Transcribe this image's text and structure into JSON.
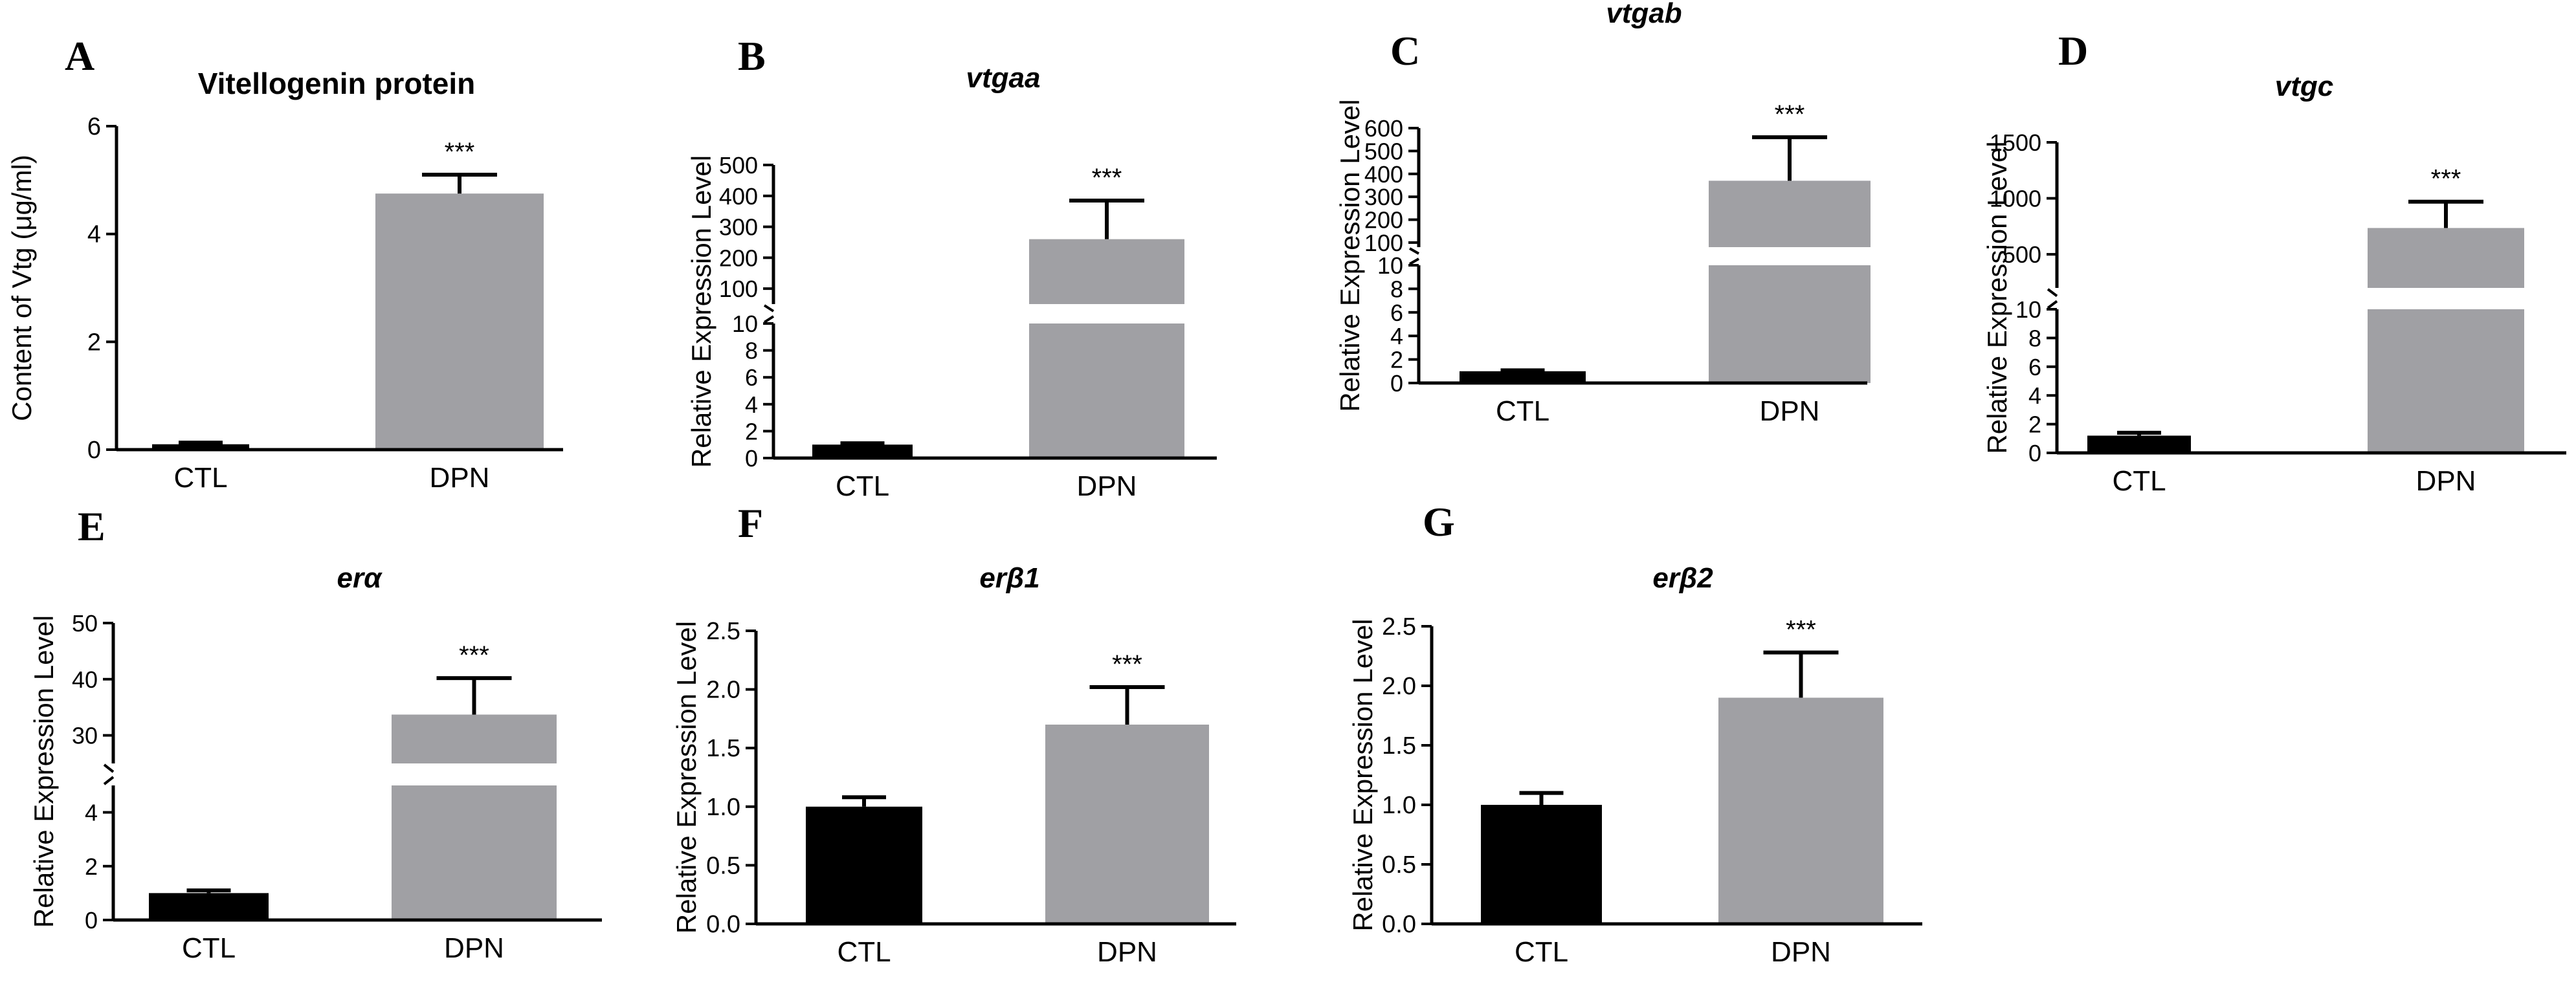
{
  "colors": {
    "ctl": "#000000",
    "dpn": "#a0a0a4",
    "axis": "#000000",
    "background": "#ffffff"
  },
  "chart_data": [
    {
      "panel": "A",
      "type": "bar",
      "title": "Vitellogenin protein",
      "title_italic": false,
      "ylabel": "Content of Vtg (μg/ml)",
      "categories": [
        "CTL",
        "DPN"
      ],
      "values": [
        0.1,
        4.75
      ],
      "errors": [
        0.03,
        0.35
      ],
      "significance": [
        "",
        "***"
      ],
      "axis_break": null,
      "ylim": [
        0,
        6
      ],
      "yticks": [
        0,
        2,
        4,
        6
      ],
      "ytick_labels": [
        "0",
        "2",
        "4",
        "6"
      ]
    },
    {
      "panel": "B",
      "type": "bar",
      "title": "vtgaa",
      "title_italic": true,
      "ylabel": "Relative Expression Level",
      "categories": [
        "CTL",
        "DPN"
      ],
      "values": [
        1.0,
        260
      ],
      "errors": [
        0.1,
        125
      ],
      "significance": [
        "",
        "***"
      ],
      "axis_break": {
        "lower": [
          0,
          10
        ],
        "upper": [
          50,
          500
        ]
      },
      "ylim": [
        0,
        500
      ],
      "yticks": [
        0,
        2,
        4,
        6,
        8,
        10,
        100,
        200,
        300,
        400,
        500
      ],
      "ytick_labels": [
        "0",
        "2",
        "4",
        "6",
        "8",
        "10",
        "100",
        "200",
        "300",
        "400",
        "500"
      ]
    },
    {
      "panel": "C",
      "type": "bar",
      "title": "vtgab",
      "title_italic": true,
      "ylabel": "Relative Expression Level",
      "categories": [
        "CTL",
        "DPN"
      ],
      "values": [
        1.0,
        370
      ],
      "errors": [
        0.08,
        190
      ],
      "significance": [
        "",
        "***"
      ],
      "axis_break": {
        "lower": [
          0,
          10
        ],
        "upper": [
          80,
          600
        ]
      },
      "ylim": [
        0,
        600
      ],
      "yticks": [
        0,
        2,
        4,
        6,
        8,
        10,
        100,
        200,
        300,
        400,
        500,
        600
      ],
      "ytick_labels": [
        "0",
        "2",
        "4",
        "6",
        "8",
        "10",
        "100",
        "200",
        "300",
        "400",
        "500",
        "600"
      ]
    },
    {
      "panel": "D",
      "type": "bar",
      "title": "vtgc",
      "title_italic": true,
      "ylabel": "Relative Expression Level",
      "categories": [
        "CTL",
        "DPN"
      ],
      "values": [
        1.2,
        735
      ],
      "errors": [
        0.2,
        235
      ],
      "significance": [
        "",
        "***"
      ],
      "axis_break": {
        "lower": [
          0,
          10
        ],
        "upper": [
          200,
          1500
        ]
      },
      "ylim": [
        0,
        1500
      ],
      "yticks": [
        0,
        2,
        4,
        6,
        8,
        10,
        500,
        1000,
        1500
      ],
      "ytick_labels": [
        "0",
        "2",
        "4",
        "6",
        "8",
        "10",
        "500",
        "1000",
        "1500"
      ]
    },
    {
      "panel": "E",
      "type": "bar",
      "title": "erα",
      "title_italic": true,
      "ylabel": "Relative Expression Level",
      "categories": [
        "CTL",
        "DPN"
      ],
      "values": [
        1.0,
        33.7
      ],
      "errors": [
        0.1,
        6.5
      ],
      "significance": [
        "",
        "***"
      ],
      "axis_break": {
        "lower": [
          0,
          5
        ],
        "upper": [
          25,
          50
        ]
      },
      "ylim": [
        0,
        50
      ],
      "yticks": [
        0,
        2,
        4,
        30,
        40,
        50
      ],
      "ytick_labels": [
        "0",
        "2",
        "4",
        "30",
        "40",
        "50"
      ]
    },
    {
      "panel": "F",
      "type": "bar",
      "title": "erβ1",
      "title_italic": true,
      "ylabel": "Relative Expression Level",
      "categories": [
        "CTL",
        "DPN"
      ],
      "values": [
        1.0,
        1.7
      ],
      "errors": [
        0.08,
        0.32
      ],
      "significance": [
        "",
        "***"
      ],
      "axis_break": null,
      "ylim": [
        0,
        2.5
      ],
      "yticks": [
        0,
        0.5,
        1,
        1.5,
        2,
        2.5
      ],
      "ytick_labels": [
        "0.0",
        "0.5",
        "1.0",
        "1.5",
        "2.0",
        "2.5"
      ]
    },
    {
      "panel": "G",
      "type": "bar",
      "title": "erβ2",
      "title_italic": true,
      "ylabel": "Relative Expression Level",
      "categories": [
        "CTL",
        "DPN"
      ],
      "values": [
        1.0,
        1.9
      ],
      "errors": [
        0.1,
        0.38
      ],
      "significance": [
        "",
        "***"
      ],
      "axis_break": null,
      "ylim": [
        0,
        2.5
      ],
      "yticks": [
        0,
        0.5,
        1,
        1.5,
        2,
        2.5
      ],
      "ytick_labels": [
        "0.0",
        "0.5",
        "1.0",
        "1.5",
        "2.0",
        "2.5"
      ]
    }
  ]
}
